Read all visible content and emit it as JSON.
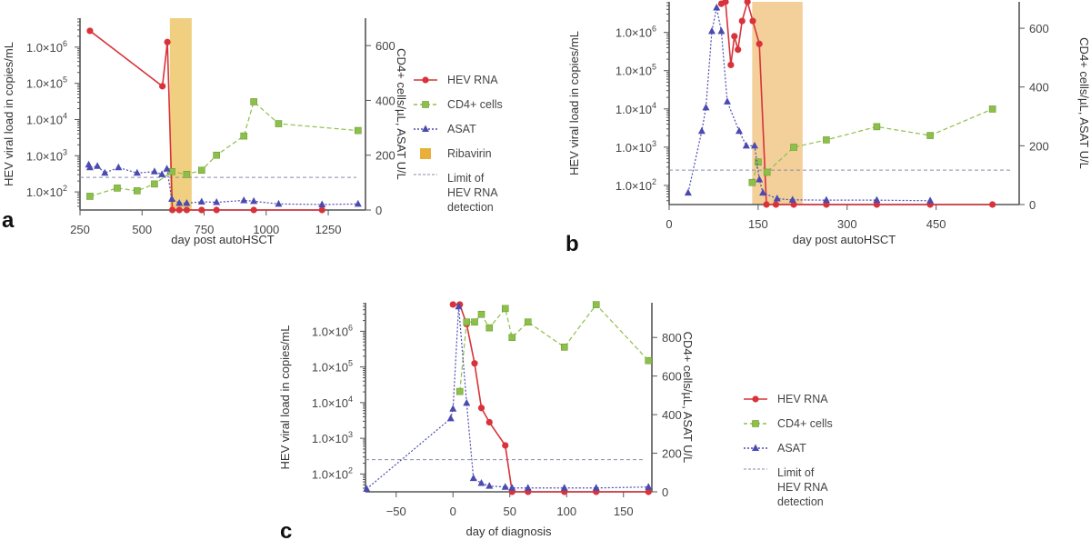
{
  "colors": {
    "hev_rna": "#d8333a",
    "cd4": "#8dc04a",
    "asat": "#4a4ab0",
    "ribavirin_a": "#f0d080",
    "ribavirin_b": "#f3cf9a",
    "limit": "#8a8aa8",
    "axis": "#555555"
  },
  "legend_a": {
    "items": [
      {
        "key": "hev_rna",
        "label": "HEV RNA"
      },
      {
        "key": "cd4",
        "label": "CD4+ cells"
      },
      {
        "key": "asat",
        "label": "ASAT"
      },
      {
        "key": "ribavirin",
        "label": "Ribavirin"
      },
      {
        "key": "limit",
        "label": "Limit of|HEV RNA|detection"
      }
    ]
  },
  "legend_c": {
    "items": [
      {
        "key": "hev_rna",
        "label": "HEV RNA"
      },
      {
        "key": "cd4",
        "label": "CD4+ cells"
      },
      {
        "key": "asat",
        "label": "ASAT"
      },
      {
        "key": "limit",
        "label": "Limit of|HEV RNA|detection"
      }
    ]
  },
  "chart_data": [
    {
      "panel": "a",
      "type": "line",
      "xlabel": "day post autoHSCT",
      "ylabel_left": "HEV viral load in copies/mL",
      "ylabel_right": "CD4+ cells/µL, ASAT U/L",
      "x_ticks": [
        250,
        500,
        750,
        1000,
        1250
      ],
      "xlim": [
        250,
        1400
      ],
      "left_ticks": [
        "1.0x10^2",
        "1.0x10^3",
        "1.0x10^4",
        "1.0x10^5",
        "1.0x10^6"
      ],
      "left_log_range": [
        1.5,
        6.8
      ],
      "right_ticks": [
        0,
        200,
        400,
        600
      ],
      "right_range": [
        0,
        700
      ],
      "limit_log": 2.4,
      "ribavirin": [
        612,
        700
      ],
      "series": [
        {
          "name": "HEV RNA",
          "key": "hev_rna",
          "axis": "left",
          "style": "solid",
          "x": [
            290,
            582,
            602,
            622,
            650,
            680,
            740,
            800,
            950,
            1225
          ],
          "y": [
            6.45,
            4.92,
            6.14,
            null,
            null,
            null,
            null,
            null,
            null,
            null
          ]
        },
        {
          "name": "CD4+ cells",
          "key": "cd4",
          "axis": "right",
          "style": "dashed",
          "x": [
            290,
            400,
            480,
            550,
            620,
            680,
            740,
            800,
            910,
            950,
            1050,
            1370
          ],
          "y": [
            50,
            80,
            70,
            95,
            140,
            130,
            145,
            200,
            270,
            395,
            315,
            290
          ]
        },
        {
          "name": "ASAT",
          "key": "asat",
          "axis": "right",
          "style": "dotted",
          "x": [
            285,
            290,
            320,
            350,
            405,
            480,
            550,
            580,
            600,
            620,
            650,
            680,
            740,
            800,
            910,
            950,
            1050,
            1225,
            1370
          ],
          "y": [
            165,
            155,
            160,
            135,
            155,
            135,
            140,
            130,
            150,
            40,
            25,
            25,
            30,
            28,
            35,
            32,
            22,
            20,
            22
          ]
        }
      ],
      "below_limit_x": [
        622,
        650,
        680,
        740,
        800,
        950,
        1225
      ]
    },
    {
      "panel": "b",
      "type": "line",
      "xlabel": "day post autoHSCT",
      "ylabel_left": "HEV viral load in copies/mL",
      "ylabel_right": "CD4+ cells/µL, ASAT U/L",
      "x_ticks": [
        0,
        150,
        300,
        450
      ],
      "xlim": [
        0,
        590
      ],
      "left_ticks": [
        "1.0x10^2",
        "1.0x10^3",
        "1.0x10^4",
        "1.0x10^5",
        "1.0x10^6"
      ],
      "left_log_range": [
        1.5,
        6.8
      ],
      "right_ticks": [
        0,
        200,
        400,
        600
      ],
      "right_range": [
        0,
        690
      ],
      "limit_log": 2.4,
      "ribavirin": [
        140,
        225
      ],
      "series": [
        {
          "name": "HEV RNA",
          "key": "hev_rna",
          "axis": "left",
          "style": "solid",
          "x": [
            88,
            95,
            104,
            110,
            116,
            123,
            132,
            141,
            152,
            164
          ],
          "y": [
            6.75,
            6.8,
            5.15,
            5.9,
            5.55,
            6.3,
            6.8,
            6.3,
            5.7,
            null
          ]
        },
        {
          "name": "CD4+ cells",
          "key": "cd4",
          "axis": "right",
          "style": "dashed",
          "x": [
            140,
            150,
            165,
            210,
            265,
            350,
            440,
            545
          ],
          "y": [
            75,
            145,
            110,
            195,
            220,
            265,
            235,
            325
          ]
        },
        {
          "name": "ASAT",
          "key": "asat",
          "axis": "right",
          "style": "dotted",
          "x": [
            32,
            55,
            62,
            72,
            80,
            88,
            98,
            118,
            130,
            144,
            152,
            158,
            182,
            208,
            265,
            350,
            440
          ],
          "y": [
            40,
            250,
            330,
            590,
            670,
            590,
            350,
            250,
            200,
            200,
            85,
            40,
            20,
            16,
            15,
            15,
            13
          ]
        }
      ],
      "below_limit_x": [
        164,
        180,
        210,
        265,
        350,
        440,
        545
      ]
    },
    {
      "panel": "c",
      "type": "line",
      "xlabel": "day of diagnosis",
      "ylabel_left": "HEV viral load in copies/mL",
      "ylabel_right": "CD4+ cells/µL, ASAT U/L",
      "x_ticks": [
        -50,
        0,
        50,
        100,
        150
      ],
      "xlim": [
        -77,
        175
      ],
      "left_ticks": [
        "1.0x10^2",
        "1.0x10^3",
        "1.0x10^4",
        "1.0x10^5",
        "1.0x10^6"
      ],
      "left_log_range": [
        1.5,
        6.8
      ],
      "right_ticks": [
        0,
        200,
        400,
        600,
        800
      ],
      "right_range": [
        0,
        980
      ],
      "limit_log": 2.4,
      "series": [
        {
          "name": "HEV RNA",
          "key": "hev_rna",
          "axis": "left",
          "style": "solid",
          "x": [
            0,
            6,
            12,
            19,
            25,
            32,
            46,
            52
          ],
          "y": [
            6.75,
            6.75,
            6.2,
            5.1,
            3.85,
            3.45,
            2.8,
            null
          ]
        },
        {
          "name": "CD4+ cells",
          "key": "cd4",
          "axis": "right",
          "style": "dashed",
          "x": [
            6,
            12,
            19,
            25,
            32,
            46,
            52,
            66,
            98,
            126,
            172
          ],
          "y": [
            520,
            880,
            880,
            920,
            850,
            950,
            800,
            880,
            750,
            970,
            680
          ]
        },
        {
          "name": "ASAT",
          "key": "asat",
          "axis": "right",
          "style": "dotted",
          "x": [
            -76,
            -2,
            0,
            5,
            12,
            18,
            25,
            32,
            46,
            52,
            66,
            98,
            126,
            172
          ],
          "y": [
            15,
            380,
            430,
            960,
            460,
            70,
            45,
            30,
            25,
            20,
            20,
            20,
            20,
            25
          ]
        }
      ],
      "below_limit_x": [
        52,
        66,
        98,
        126,
        172
      ]
    }
  ]
}
